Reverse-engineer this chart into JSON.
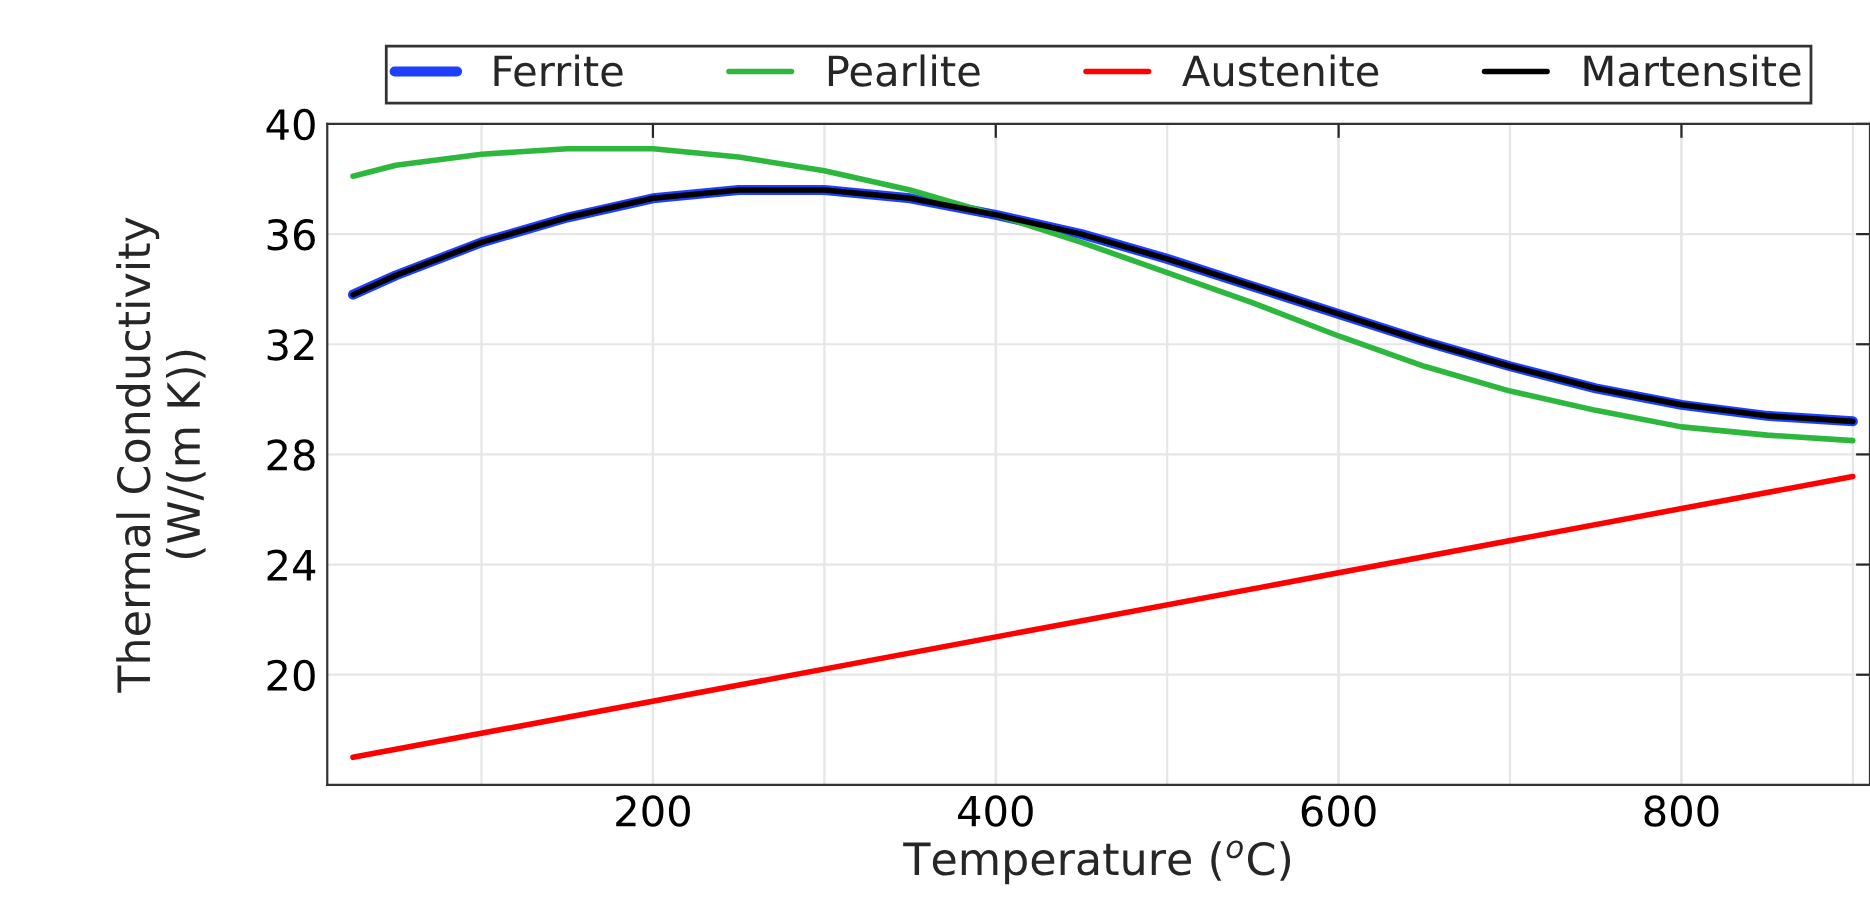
{
  "chart_data": {
    "type": "line",
    "xlabel": "Temperature ($^{o}$C)",
    "ylabel": "Thermal Conductivity\n(W/(m K))",
    "x": [
      25,
      50,
      100,
      150,
      200,
      250,
      300,
      350,
      400,
      450,
      500,
      550,
      600,
      650,
      700,
      750,
      800,
      850,
      900
    ],
    "series": [
      {
        "name": "Ferrite",
        "color": "#1f3fff",
        "values": [
          33.8,
          34.5,
          35.7,
          36.6,
          37.3,
          37.6,
          37.6,
          37.3,
          36.7,
          36.0,
          35.1,
          34.1,
          33.1,
          32.1,
          31.2,
          30.4,
          29.8,
          29.4,
          29.2
        ]
      },
      {
        "name": "Pearlite",
        "color": "#2db83d",
        "values": [
          38.1,
          38.5,
          38.9,
          39.1,
          39.1,
          38.8,
          38.3,
          37.6,
          36.7,
          35.7,
          34.6,
          33.5,
          32.3,
          31.2,
          30.3,
          29.6,
          29.0,
          28.7,
          28.5
        ]
      },
      {
        "name": "Austenite",
        "color": "#ff0000",
        "x": [
          25,
          900
        ],
        "values": [
          17.0,
          27.2
        ]
      },
      {
        "name": "Martensite",
        "color": "#000000",
        "values": [
          33.8,
          34.5,
          35.7,
          36.6,
          37.3,
          37.6,
          37.6,
          37.3,
          36.7,
          36.0,
          35.1,
          34.1,
          33.1,
          32.1,
          31.2,
          30.4,
          29.8,
          29.4,
          29.2
        ]
      }
    ],
    "xlim": [
      10,
      910
    ],
    "ylim": [
      16,
      40
    ],
    "xticks": [
      200,
      400,
      600,
      800
    ],
    "yticks": [
      20,
      24,
      28,
      32,
      36,
      40
    ],
    "grid": true,
    "legend": "top",
    "line_style": "solid",
    "marker": "none"
  }
}
